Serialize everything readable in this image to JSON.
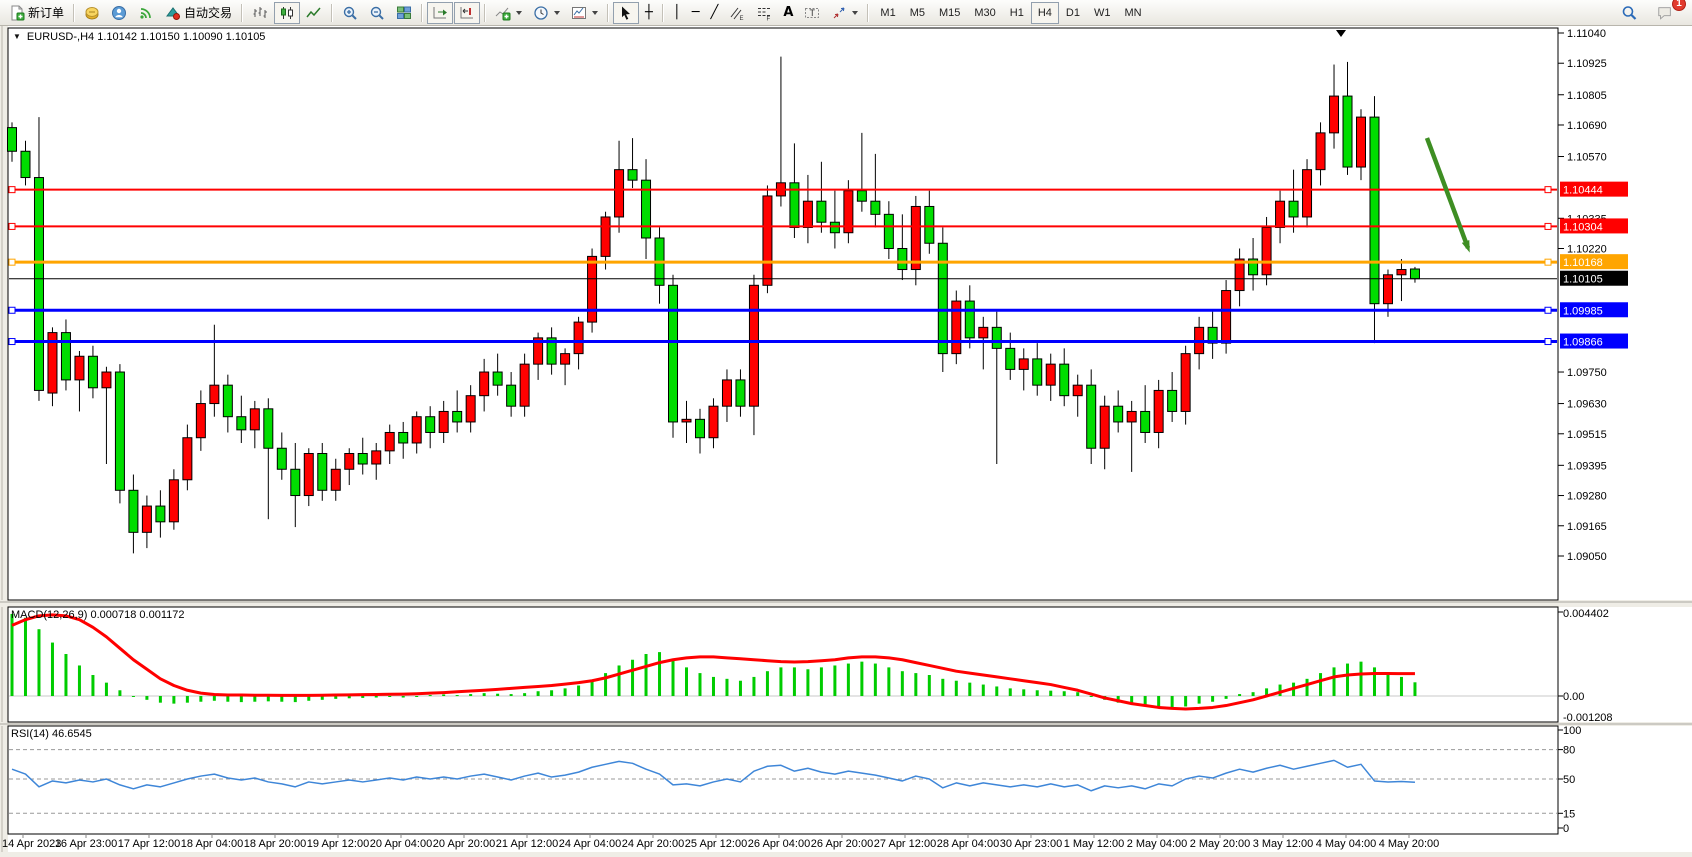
{
  "toolbar": {
    "new_order_label": "新订单",
    "auto_trading_label": "自动交易",
    "timeframes": [
      "M1",
      "M5",
      "M15",
      "M30",
      "H1",
      "H4",
      "D1",
      "W1",
      "MN"
    ],
    "active_timeframe": "H4",
    "notification_count": "1",
    "notification_badge_color": "#E23B2E"
  },
  "chart": {
    "symbol": "EURUSD-",
    "period": "H4",
    "open": "1.10142",
    "high": "1.10150",
    "low": "1.10090",
    "close": "1.10105",
    "title_line": "EURUSD-,H4  1.10142 1.10150 1.10090 1.10105"
  },
  "price_axis": {
    "ticks": [
      1.1104,
      1.10925,
      1.10805,
      1.1069,
      1.1057,
      1.10335,
      1.1022,
      1.0975,
      1.0963,
      1.09515,
      1.09395,
      1.0928,
      1.09165,
      1.0905
    ]
  },
  "hlines": [
    {
      "price": 1.10444,
      "label": "1.10444",
      "color": "#FF0000",
      "width": 2,
      "handles": true
    },
    {
      "price": 1.10304,
      "label": "1.10304",
      "color": "#FF0000",
      "width": 2,
      "handles": true
    },
    {
      "price": 1.10168,
      "label": "1.10168",
      "color": "#FFA500",
      "width": 3,
      "handles": true
    },
    {
      "price": 1.10105,
      "label": "1.10105",
      "color": "#000000",
      "width": 1,
      "handles": false
    },
    {
      "price": 1.09985,
      "label": "1.09985",
      "color": "#0000FF",
      "width": 3,
      "handles": true
    },
    {
      "price": 1.09866,
      "label": "1.09866",
      "color": "#0000FF",
      "width": 3,
      "handles": true
    }
  ],
  "time_axis": [
    "14 Apr 2023",
    "16 Apr 23:00",
    "17 Apr 12:00",
    "18 Apr 04:00",
    "18 Apr 20:00",
    "19 Apr 12:00",
    "20 Apr 04:00",
    "20 Apr 20:00",
    "21 Apr 12:00",
    "24 Apr 04:00",
    "24 Apr 20:00",
    "25 Apr 12:00",
    "26 Apr 04:00",
    "26 Apr 20:00",
    "27 Apr 12:00",
    "28 Apr 04:00",
    "30 Apr 23:00",
    "1 May 12:00",
    "2 May 04:00",
    "2 May 20:00",
    "3 May 12:00",
    "4 May 04:00",
    "4 May 20:00"
  ],
  "annotations": {
    "trend_arrow": {
      "color": "#3E8E23",
      "direction": "down-right"
    }
  },
  "chart_data": [
    {
      "type": "candlestick",
      "title": "EURUSD-,H4",
      "up_color": "#FF0000",
      "down_color": "#00DD00",
      "color_note": "red body = bullish close, green body = bearish close",
      "price_range": [
        1.0905,
        1.1104
      ],
      "candles": [
        [
          1.1068,
          1.107,
          1.1055,
          1.1059
        ],
        [
          1.1059,
          1.1063,
          1.1046,
          1.1049
        ],
        [
          1.1049,
          1.1072,
          1.0964,
          1.0968
        ],
        [
          1.0967,
          1.0992,
          1.0962,
          1.099
        ],
        [
          1.099,
          1.0995,
          1.0968,
          1.0972
        ],
        [
          1.0972,
          1.0983,
          1.096,
          1.0981
        ],
        [
          1.0981,
          1.0985,
          1.0965,
          1.0969
        ],
        [
          1.0969,
          1.0977,
          1.094,
          1.0975
        ],
        [
          1.0975,
          1.0978,
          1.0925,
          1.093
        ],
        [
          1.093,
          1.0936,
          1.0906,
          1.0914
        ],
        [
          1.0914,
          1.0928,
          1.0908,
          1.0924
        ],
        [
          1.0924,
          1.093,
          1.0912,
          1.0918
        ],
        [
          1.0918,
          1.0938,
          1.0915,
          1.0934
        ],
        [
          1.0934,
          1.0955,
          1.093,
          1.095
        ],
        [
          1.095,
          1.0968,
          1.0945,
          1.0963
        ],
        [
          1.0963,
          1.0993,
          1.0958,
          1.097
        ],
        [
          1.097,
          1.0974,
          1.0952,
          1.0958
        ],
        [
          1.0958,
          1.0966,
          1.0948,
          1.0953
        ],
        [
          1.0953,
          1.0964,
          1.0946,
          1.0961
        ],
        [
          1.0961,
          1.0965,
          1.0919,
          1.0946
        ],
        [
          1.0946,
          1.0952,
          1.0934,
          1.0938
        ],
        [
          1.0938,
          1.0948,
          1.0916,
          1.0928
        ],
        [
          1.0928,
          1.0946,
          1.0924,
          1.0944
        ],
        [
          1.0944,
          1.0948,
          1.0926,
          1.093
        ],
        [
          1.093,
          1.0942,
          1.0926,
          1.0938
        ],
        [
          1.0938,
          1.0946,
          1.0932,
          1.0944
        ],
        [
          1.0944,
          1.095,
          1.0936,
          1.094
        ],
        [
          1.094,
          1.0948,
          1.0934,
          1.0945
        ],
        [
          1.0945,
          1.0955,
          1.094,
          1.0952
        ],
        [
          1.0952,
          1.0956,
          1.0942,
          1.0948
        ],
        [
          1.0948,
          1.096,
          1.0944,
          1.0958
        ],
        [
          1.0958,
          1.0962,
          1.0946,
          1.0952
        ],
        [
          1.0952,
          1.0964,
          1.0948,
          1.096
        ],
        [
          1.096,
          1.0968,
          1.0952,
          1.0956
        ],
        [
          1.0956,
          1.097,
          1.0952,
          1.0966
        ],
        [
          1.0966,
          1.098,
          1.096,
          1.0975
        ],
        [
          1.0975,
          1.0982,
          1.0966,
          1.097
        ],
        [
          1.097,
          1.0975,
          1.0958,
          1.0962
        ],
        [
          1.0962,
          1.0982,
          1.0958,
          1.0978
        ],
        [
          1.0978,
          1.099,
          1.0972,
          1.0988
        ],
        [
          1.0988,
          1.0992,
          1.0974,
          1.0978
        ],
        [
          1.0978,
          1.0984,
          1.097,
          1.0982
        ],
        [
          1.0982,
          1.0996,
          1.0976,
          1.0994
        ],
        [
          1.0994,
          1.1022,
          1.099,
          1.1019
        ],
        [
          1.1019,
          1.1036,
          1.1014,
          1.1034
        ],
        [
          1.1034,
          1.1063,
          1.1028,
          1.1052
        ],
        [
          1.1052,
          1.1064,
          1.1045,
          1.1048
        ],
        [
          1.1048,
          1.1056,
          1.1018,
          1.1026
        ],
        [
          1.1026,
          1.103,
          1.1001,
          1.1008
        ],
        [
          1.1008,
          1.1012,
          1.095,
          1.0956
        ],
        [
          1.0956,
          1.0964,
          1.0948,
          1.0957
        ],
        [
          1.0957,
          1.0961,
          1.0944,
          1.095
        ],
        [
          1.095,
          1.0965,
          1.0946,
          1.0962
        ],
        [
          1.0962,
          1.0976,
          1.0956,
          1.0972
        ],
        [
          1.0972,
          1.0976,
          1.0958,
          1.0962
        ],
        [
          1.0962,
          1.1012,
          1.0951,
          1.1008
        ],
        [
          1.1008,
          1.1046,
          1.1005,
          1.1042
        ],
        [
          1.1042,
          1.1095,
          1.1038,
          1.1047
        ],
        [
          1.1047,
          1.1062,
          1.1026,
          1.103
        ],
        [
          1.103,
          1.105,
          1.1024,
          1.104
        ],
        [
          1.104,
          1.1055,
          1.1028,
          1.1032
        ],
        [
          1.1032,
          1.1044,
          1.1022,
          1.1028
        ],
        [
          1.1028,
          1.1048,
          1.1024,
          1.1044
        ],
        [
          1.1044,
          1.1066,
          1.1036,
          1.104
        ],
        [
          1.104,
          1.1058,
          1.103,
          1.1035
        ],
        [
          1.1035,
          1.104,
          1.1018,
          1.1022
        ],
        [
          1.1022,
          1.1035,
          1.101,
          1.1014
        ],
        [
          1.1014,
          1.1042,
          1.1008,
          1.1038
        ],
        [
          1.1038,
          1.1044,
          1.102,
          1.1024
        ],
        [
          1.1024,
          1.103,
          1.0975,
          1.0982
        ],
        [
          1.0982,
          1.1006,
          1.0978,
          1.1002
        ],
        [
          1.1002,
          1.1008,
          1.0984,
          1.0988
        ],
        [
          1.0988,
          1.0996,
          1.0976,
          1.0992
        ],
        [
          1.0992,
          1.0998,
          1.094,
          1.0984
        ],
        [
          1.0984,
          1.099,
          1.0972,
          1.0976
        ],
        [
          1.0976,
          1.0984,
          1.0968,
          1.098
        ],
        [
          1.098,
          1.0986,
          1.0966,
          1.097
        ],
        [
          1.097,
          1.0982,
          1.0964,
          1.0978
        ],
        [
          1.0978,
          1.0984,
          1.0962,
          1.0966
        ],
        [
          1.0966,
          1.0974,
          1.0958,
          1.097
        ],
        [
          1.097,
          1.0976,
          1.094,
          1.0946
        ],
        [
          1.0946,
          1.0966,
          1.0938,
          1.0962
        ],
        [
          1.0962,
          1.0968,
          1.0952,
          1.0956
        ],
        [
          1.0956,
          1.0964,
          1.0937,
          1.096
        ],
        [
          1.096,
          1.097,
          1.0948,
          1.0952
        ],
        [
          1.0952,
          1.0972,
          1.0946,
          1.0968
        ],
        [
          1.0968,
          1.0975,
          1.0956,
          1.096
        ],
        [
          1.096,
          1.0985,
          1.0955,
          1.0982
        ],
        [
          1.0982,
          1.0996,
          1.0976,
          1.0992
        ],
        [
          1.0992,
          1.0998,
          1.098,
          1.0986
        ],
        [
          1.0986,
          1.101,
          1.0982,
          1.1006
        ],
        [
          1.1006,
          1.1022,
          1.1,
          1.1018
        ],
        [
          1.1018,
          1.1026,
          1.1006,
          1.1012
        ],
        [
          1.1012,
          1.1034,
          1.1008,
          1.103
        ],
        [
          1.103,
          1.1044,
          1.1024,
          1.104
        ],
        [
          1.104,
          1.1052,
          1.1028,
          1.1034
        ],
        [
          1.1034,
          1.1056,
          1.103,
          1.1052
        ],
        [
          1.1052,
          1.107,
          1.1046,
          1.1066
        ],
        [
          1.1066,
          1.1092,
          1.106,
          1.108
        ],
        [
          1.108,
          1.1093,
          1.105,
          1.1053
        ],
        [
          1.1053,
          1.1075,
          1.1048,
          1.1072
        ],
        [
          1.1072,
          1.108,
          1.0986,
          1.1001
        ],
        [
          1.1001,
          1.1014,
          1.0996,
          1.1012
        ],
        [
          1.1012,
          1.1018,
          1.1002,
          1.1014
        ],
        [
          1.10142,
          1.1015,
          1.1009,
          1.10105
        ]
      ]
    },
    {
      "type": "bar",
      "name": "MACD(12,26,9)",
      "label": "MACD(12,26,9) 0.000718 0.001172",
      "current_values": [
        0.000718,
        0.001172
      ],
      "range": [
        -0.001208,
        0.004402
      ],
      "axis_labels": [
        "0.004402",
        "0.00",
        "-0.001208"
      ],
      "hist_color": "#00CC00",
      "signal_color": "#FF0000",
      "histogram": [
        0.0043,
        0.0041,
        0.0035,
        0.0028,
        0.0022,
        0.0016,
        0.0011,
        0.0007,
        0.0003,
        0.0,
        -0.0002,
        -0.00035,
        -0.0004,
        -0.00035,
        -0.0003,
        -0.00025,
        -0.0003,
        -0.00032,
        -0.0003,
        -0.00028,
        -0.0003,
        -0.00032,
        -0.00025,
        -0.0002,
        -0.00015,
        -0.00012,
        -0.0001,
        -8e-05,
        -5e-05,
        -8e-05,
        -5e-05,
        5e-05,
        8e-05,
        5e-05,
        0.0001,
        0.00015,
        0.00012,
        0.0001,
        0.00015,
        0.00025,
        0.0003,
        0.0004,
        0.00055,
        0.0008,
        0.0012,
        0.0016,
        0.0019,
        0.0022,
        0.0023,
        0.0019,
        0.0015,
        0.0012,
        0.001,
        0.0009,
        0.0008,
        0.001,
        0.0013,
        0.0015,
        0.0015,
        0.0014,
        0.0015,
        0.0016,
        0.0017,
        0.0018,
        0.0017,
        0.0015,
        0.0013,
        0.0012,
        0.0011,
        0.0009,
        0.0008,
        0.0007,
        0.0006,
        0.0005,
        0.0004,
        0.00035,
        0.0003,
        0.00028,
        0.00025,
        0.0002,
        0.0,
        -0.0002,
        -0.00035,
        -0.00045,
        -0.00055,
        -0.0006,
        -0.0007,
        -0.00055,
        -0.0004,
        -0.0003,
        -0.00015,
        0.0001,
        0.0002,
        0.0004,
        0.0006,
        0.0007,
        0.0009,
        0.0012,
        0.0015,
        0.0017,
        0.0018,
        0.0015,
        0.0012,
        0.001,
        0.000718
      ],
      "signal": [
        0.0037,
        0.004,
        0.0042,
        0.00425,
        0.0042,
        0.004,
        0.0036,
        0.0031,
        0.0025,
        0.0019,
        0.0014,
        0.0009,
        0.00055,
        0.0003,
        0.00015,
        8e-05,
        5e-05,
        5e-05,
        4e-05,
        4e-05,
        3e-05,
        3e-05,
        3e-05,
        4e-05,
        5e-05,
        6e-05,
        7e-05,
        8e-05,
        9e-05,
        0.0001,
        0.00012,
        0.00015,
        0.00018,
        0.00022,
        0.00026,
        0.0003,
        0.00035,
        0.0004,
        0.00045,
        0.0005,
        0.00055,
        0.00062,
        0.0007,
        0.0008,
        0.00095,
        0.00115,
        0.00135,
        0.00155,
        0.00175,
        0.0019,
        0.002,
        0.00205,
        0.00205,
        0.002,
        0.00195,
        0.0019,
        0.00185,
        0.0018,
        0.00178,
        0.0018,
        0.00185,
        0.0019,
        0.002,
        0.00205,
        0.00205,
        0.002,
        0.0019,
        0.00175,
        0.0016,
        0.00145,
        0.0013,
        0.0012,
        0.0011,
        0.001,
        0.0009,
        0.0008,
        0.0007,
        0.0006,
        0.00045,
        0.0003,
        0.0001,
        -0.0001,
        -0.00025,
        -0.0004,
        -0.0005,
        -0.0006,
        -0.00065,
        -0.00068,
        -0.00065,
        -0.0006,
        -0.0005,
        -0.00035,
        -0.0002,
        0.0,
        0.0002,
        0.0004,
        0.0006,
        0.0008,
        0.001,
        0.0011,
        0.00115,
        0.00118,
        0.00118,
        0.00117,
        0.001172
      ]
    },
    {
      "type": "line",
      "name": "RSI(14)",
      "label": "RSI(14) 46.6545",
      "current_value": 46.6545,
      "range": [
        0,
        100
      ],
      "levels": [
        80,
        50,
        15
      ],
      "axis_labels": [
        "100",
        "80",
        "50",
        "15",
        "0"
      ],
      "color": "#3E86D8",
      "values": [
        60,
        55,
        42,
        48,
        46,
        49,
        47,
        50,
        44,
        40,
        44,
        42,
        46,
        50,
        53,
        55,
        51,
        49,
        51,
        47,
        45,
        42,
        47,
        45,
        47,
        49,
        47,
        49,
        51,
        49,
        52,
        50,
        52,
        50,
        53,
        55,
        52,
        49,
        53,
        56,
        52,
        54,
        57,
        62,
        65,
        68,
        66,
        60,
        55,
        44,
        45,
        43,
        47,
        50,
        47,
        58,
        63,
        64,
        58,
        61,
        57,
        55,
        58,
        56,
        54,
        51,
        48,
        53,
        50,
        41,
        46,
        43,
        46,
        44,
        42,
        44,
        42,
        45,
        42,
        44,
        38,
        43,
        41,
        43,
        40,
        45,
        43,
        50,
        53,
        51,
        56,
        60,
        57,
        61,
        64,
        60,
        63,
        66,
        69,
        62,
        65,
        48,
        47,
        47.5,
        46.6545
      ]
    }
  ]
}
